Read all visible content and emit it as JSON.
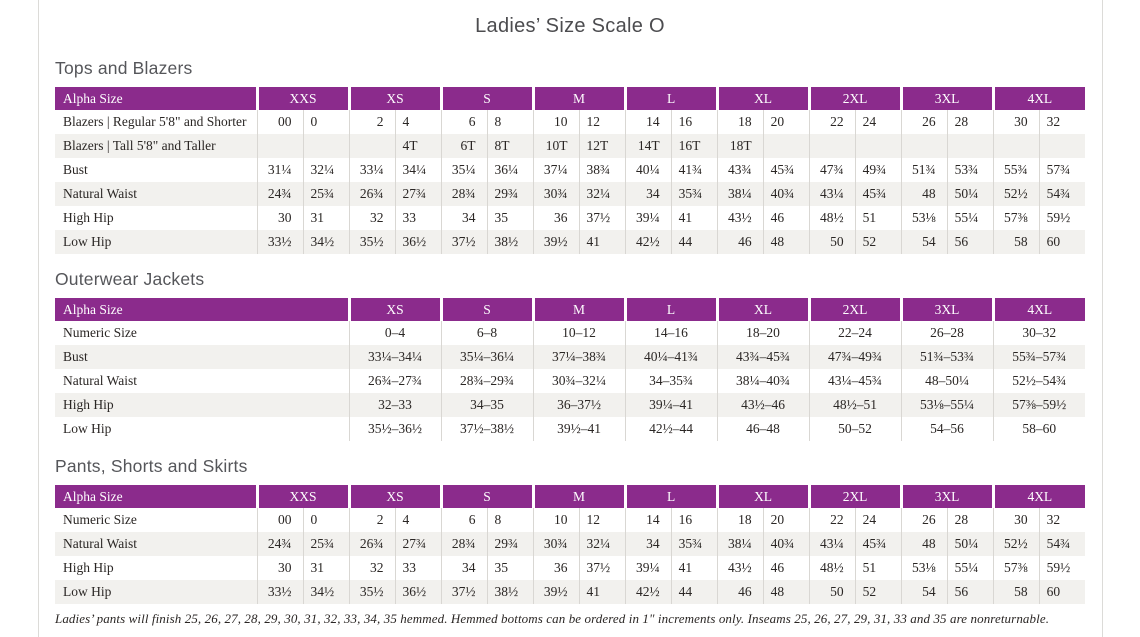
{
  "title": "Ladies’ Size Scale O",
  "footnote": "Ladies’ pants will finish 25, 26, 27, 28, 29, 30, 31, 32, 33, 34, 35 hemmed. Hemmed bottoms can be ordered in 1\" increments only. Inseams 25, 26, 27, 29, 31, 33 and 35 are nonreturnable.",
  "colors": {
    "header_purple": "#8b2b8c",
    "row_stripe": "#f2f1ee",
    "grid_line": "#d9d7d3",
    "heading_gray": "#55565a"
  },
  "tables": [
    {
      "id": "tops-and-blazers",
      "section_title": "Tops and Blazers",
      "label_header": "Alpha Size",
      "split_columns": true,
      "groups": [
        "XXS",
        "XS",
        "S",
        "M",
        "L",
        "XL",
        "2XL",
        "3XL",
        "4XL"
      ],
      "rows": [
        {
          "label": "Blazers  |  Regular 5'8\" and Shorter",
          "values": [
            "00",
            "0",
            "2",
            "4",
            "6",
            "8",
            "10",
            "12",
            "14",
            "16",
            "18",
            "20",
            "22",
            "24",
            "26",
            "28",
            "30",
            "32"
          ]
        },
        {
          "label": "Blazers  |  Tall 5'8\" and Taller",
          "values": [
            "",
            "",
            "",
            "4T",
            "6T",
            "8T",
            "10T",
            "12T",
            "14T",
            "16T",
            "18T",
            "",
            "",
            "",
            "",
            "",
            "",
            ""
          ]
        },
        {
          "label": "Bust",
          "values": [
            "31¼",
            "32¼",
            "33¼",
            "34¼",
            "35¼",
            "36¼",
            "37¼",
            "38¾",
            "40¼",
            "41¾",
            "43¾",
            "45¾",
            "47¾",
            "49¾",
            "51¾",
            "53¾",
            "55¾",
            "57¾"
          ]
        },
        {
          "label": "Natural Waist",
          "values": [
            "24¾",
            "25¾",
            "26¾",
            "27¾",
            "28¾",
            "29¾",
            "30¾",
            "32¼",
            "34",
            "35¾",
            "38¼",
            "40¾",
            "43¼",
            "45¾",
            "48",
            "50¼",
            "52½",
            "54¾"
          ]
        },
        {
          "label": "High Hip",
          "values": [
            "30",
            "31",
            "32",
            "33",
            "34",
            "35",
            "36",
            "37½",
            "39¼",
            "41",
            "43½",
            "46",
            "48½",
            "51",
            "53⅛",
            "55¼",
            "57⅜",
            "59½"
          ]
        },
        {
          "label": "Low Hip",
          "values": [
            "33½",
            "34½",
            "35½",
            "36½",
            "37½",
            "38½",
            "39½",
            "41",
            "42½",
            "44",
            "46",
            "48",
            "50",
            "52",
            "54",
            "56",
            "58",
            "60"
          ]
        }
      ]
    },
    {
      "id": "outerwear-jackets",
      "section_title": "Outerwear Jackets",
      "label_header": "Alpha Size",
      "split_columns": false,
      "groups": [
        "XS",
        "S",
        "M",
        "L",
        "XL",
        "2XL",
        "3XL",
        "4XL"
      ],
      "rows": [
        {
          "label": "Numeric Size",
          "values": [
            "0–4",
            "6–8",
            "10–12",
            "14–16",
            "18–20",
            "22–24",
            "26–28",
            "30–32"
          ]
        },
        {
          "label": "Bust",
          "values": [
            "33¼–34¼",
            "35¼–36¼",
            "37¼–38¾",
            "40¼–41¾",
            "43¾–45¾",
            "47¾–49¾",
            "51¾–53¾",
            "55¾–57¾"
          ]
        },
        {
          "label": "Natural Waist",
          "values": [
            "26¾–27¾",
            "28¾–29¾",
            "30¾–32¼",
            "34–35¾",
            "38¼–40¾",
            "43¼–45¾",
            "48–50¼",
            "52½–54¾"
          ]
        },
        {
          "label": "High Hip",
          "values": [
            "32–33",
            "34–35",
            "36–37½",
            "39¼–41",
            "43½–46",
            "48½–51",
            "53⅛–55¼",
            "57⅜–59½"
          ]
        },
        {
          "label": "Low Hip",
          "values": [
            "35½–36½",
            "37½–38½",
            "39½–41",
            "42½–44",
            "46–48",
            "50–52",
            "54–56",
            "58–60"
          ]
        }
      ]
    },
    {
      "id": "pants-shorts-skirts",
      "section_title": "Pants, Shorts and Skirts",
      "label_header": "Alpha Size",
      "split_columns": true,
      "groups": [
        "XXS",
        "XS",
        "S",
        "M",
        "L",
        "XL",
        "2XL",
        "3XL",
        "4XL"
      ],
      "rows": [
        {
          "label": "Numeric Size",
          "values": [
            "00",
            "0",
            "2",
            "4",
            "6",
            "8",
            "10",
            "12",
            "14",
            "16",
            "18",
            "20",
            "22",
            "24",
            "26",
            "28",
            "30",
            "32"
          ]
        },
        {
          "label": "Natural Waist",
          "values": [
            "24¾",
            "25¾",
            "26¾",
            "27¾",
            "28¾",
            "29¾",
            "30¾",
            "32¼",
            "34",
            "35¾",
            "38¼",
            "40¾",
            "43¼",
            "45¾",
            "48",
            "50¼",
            "52½",
            "54¾"
          ]
        },
        {
          "label": "High Hip",
          "values": [
            "30",
            "31",
            "32",
            "33",
            "34",
            "35",
            "36",
            "37½",
            "39¼",
            "41",
            "43½",
            "46",
            "48½",
            "51",
            "53⅛",
            "55¼",
            "57⅜",
            "59½"
          ]
        },
        {
          "label": "Low Hip",
          "values": [
            "33½",
            "34½",
            "35½",
            "36½",
            "37½",
            "38½",
            "39½",
            "41",
            "42½",
            "44",
            "46",
            "48",
            "50",
            "52",
            "54",
            "56",
            "58",
            "60"
          ]
        }
      ]
    }
  ]
}
